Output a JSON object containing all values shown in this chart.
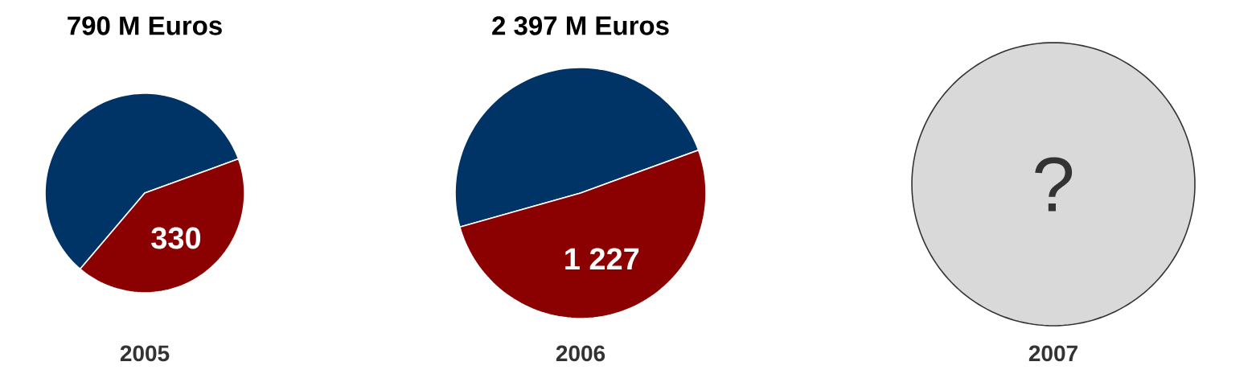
{
  "chart_data": [
    {
      "type": "pie",
      "title": "790 M Euros",
      "xlabel": "2005",
      "categories": [
        null,
        null
      ],
      "values": [
        460,
        330
      ],
      "colors": [
        "#003366",
        "#8b0000"
      ],
      "value_labels": [
        null,
        "330"
      ]
    },
    {
      "type": "pie",
      "title": "2 397 M Euros",
      "xlabel": "2006",
      "categories": [
        null,
        null
      ],
      "values": [
        1170,
        1227
      ],
      "colors": [
        "#003366",
        "#8b0000"
      ],
      "value_labels": [
        null,
        "1 227"
      ]
    },
    {
      "type": "pie",
      "xlabel": "2007",
      "categories": [
        null
      ],
      "values": [
        100
      ],
      "colors": [
        "#d9d9d9"
      ],
      "value_labels": [
        "?"
      ]
    }
  ]
}
